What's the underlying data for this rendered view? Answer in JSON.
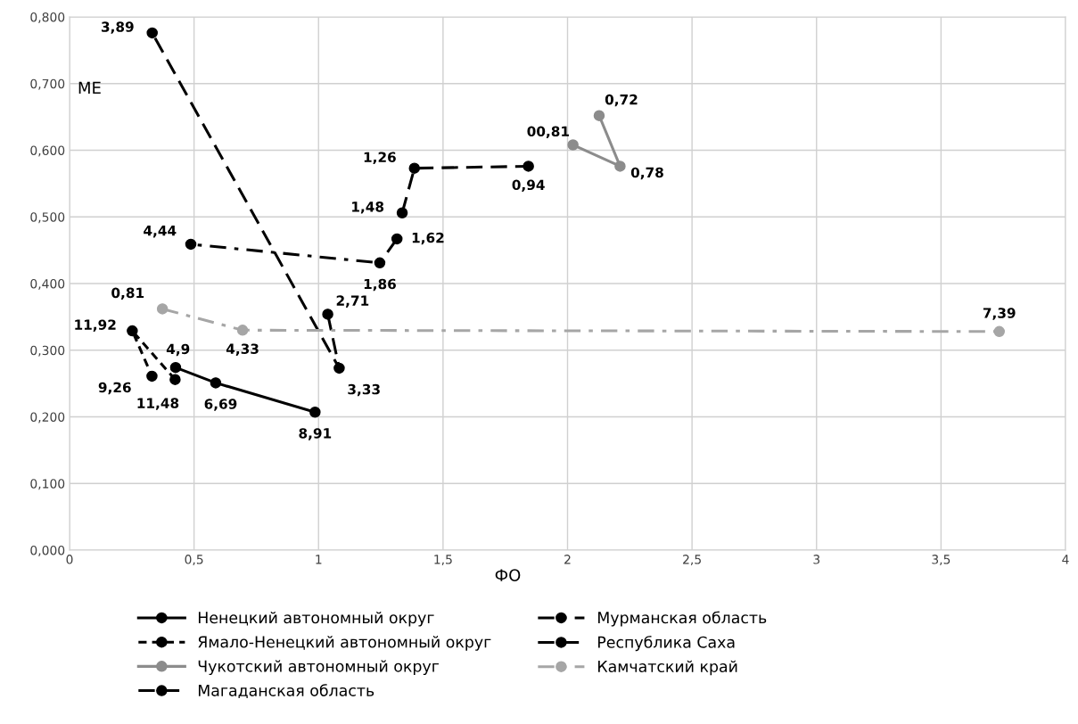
{
  "chart_data": {
    "type": "line",
    "xlabel": "ФО",
    "ylabel": "МЕ",
    "xlim": [
      0,
      4
    ],
    "xticks": [
      0,
      {
        "value": 0.5,
        "label": "0,5"
      },
      1,
      {
        "value": 1.5,
        "label": "1,5"
      },
      2,
      {
        "value": 2.5,
        "label": "2,5"
      },
      3,
      {
        "value": 3.5,
        "label": "3,5"
      },
      4
    ],
    "ylim": [
      0,
      0.8
    ],
    "yticks": [
      {
        "value": 0,
        "label": "0,000"
      },
      {
        "value": 0.1,
        "label": "0,100"
      },
      {
        "value": 0.2,
        "label": "0,200"
      },
      {
        "value": 0.3,
        "label": "0,300"
      },
      {
        "value": 0.4,
        "label": "0,400"
      },
      {
        "value": 0.5,
        "label": "0,500"
      },
      {
        "value": 0.6,
        "label": "0,600"
      },
      {
        "value": 0.7,
        "label": "0,700"
      },
      {
        "value": 0.8,
        "label": "0,800"
      }
    ],
    "grid": true,
    "legend": "bottom",
    "marker": "circle",
    "series": [
      {
        "name": "Ненецкий автономный округ",
        "color": "#000000",
        "line_style": "solid",
        "x": [
          0.986,
          0.587,
          0.426
        ],
        "values": [
          0.207,
          0.251,
          0.274
        ]
      },
      {
        "name": "Мурманская область",
        "color": "#000000",
        "line_style": "dashdot",
        "x": [
          1.315,
          1.246,
          0.487
        ],
        "values": [
          0.467,
          0.431,
          0.459
        ]
      },
      {
        "name": "Ямало-Ненецкий автономный округ",
        "color": "#000000",
        "line_style": "dotted",
        "x": [
          0.424,
          0.252,
          0.331
        ],
        "values": [
          0.256,
          0.329,
          0.261
        ]
      },
      {
        "name": "Республика Саха",
        "color": "#000000",
        "line_style": "dashed",
        "x": [
          1.037,
          1.083,
          0.332
        ],
        "values": [
          0.354,
          0.273,
          0.776
        ]
      },
      {
        "name": "Чукотский автономный округ",
        "color": "#8c8c8c",
        "line_style": "solid",
        "x": [
          2.127,
          2.211,
          2.022
        ],
        "values": [
          0.652,
          0.576,
          0.608
        ]
      },
      {
        "name": "Камчатский край",
        "color": "#a6a6a6",
        "line_style": "dashdot",
        "x": [
          0.373,
          0.695,
          3.734
        ],
        "values": [
          0.362,
          0.33,
          0.328
        ]
      },
      {
        "name": "Магаданская область",
        "color": "#000000",
        "line_style": "dashed",
        "x": [
          1.336,
          1.385,
          1.843
        ],
        "values": [
          0.506,
          0.573,
          0.576
        ]
      }
    ],
    "annotations": [
      {
        "text": "8,91",
        "x": 0.986,
        "y": 0.207
      },
      {
        "text": "6,69",
        "x": 0.587,
        "y": 0.251
      },
      {
        "text": "4,9",
        "x": 0.426,
        "y": 0.274
      },
      {
        "text": "1,62",
        "x": 1.315,
        "y": 0.467
      },
      {
        "text": "1,86",
        "x": 1.246,
        "y": 0.431
      },
      {
        "text": "4,44",
        "x": 0.487,
        "y": 0.459
      },
      {
        "text": "11,48",
        "x": 0.424,
        "y": 0.256
      },
      {
        "text": "11,92",
        "x": 0.252,
        "y": 0.329
      },
      {
        "text": "9,26",
        "x": 0.331,
        "y": 0.261
      },
      {
        "text": "2,71",
        "x": 1.037,
        "y": 0.354
      },
      {
        "text": "3,33",
        "x": 1.083,
        "y": 0.273
      },
      {
        "text": "3,89",
        "x": 0.332,
        "y": 0.776
      },
      {
        "text": "0,72",
        "x": 2.127,
        "y": 0.652
      },
      {
        "text": "0,78",
        "x": 2.211,
        "y": 0.576
      },
      {
        "text": "00,81",
        "x": 2.022,
        "y": 0.608
      },
      {
        "text": "0,81",
        "x": 0.373,
        "y": 0.362
      },
      {
        "text": "4,33",
        "x": 0.695,
        "y": 0.33
      },
      {
        "text": "7,39",
        "x": 3.734,
        "y": 0.328
      },
      {
        "text": "1,48",
        "x": 1.336,
        "y": 0.506
      },
      {
        "text": "1,26",
        "x": 1.385,
        "y": 0.573
      },
      {
        "text": "0,94",
        "x": 1.843,
        "y": 0.576
      }
    ]
  }
}
